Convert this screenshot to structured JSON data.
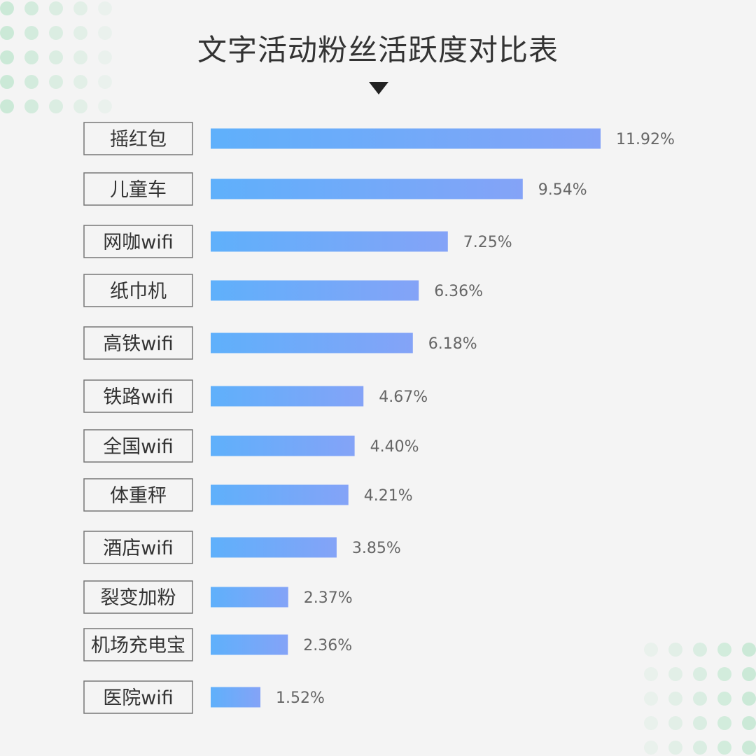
{
  "title": "文字活动粉丝活跃度对比表",
  "colors": {
    "bar_start": "#5fb0fb",
    "bar_end": "#84a3f7",
    "dot_color": "#c7e8d4",
    "background": "#f4f4f4"
  },
  "chart_data": {
    "type": "bar",
    "orientation": "horizontal",
    "title": "文字活动粉丝活跃度对比表",
    "categories": [
      "摇红包",
      "儿童车",
      "网咖wifi",
      "纸巾机",
      "高铁wifi",
      "铁路wifi",
      "全国wifi",
      "体重秤",
      "酒店wifi",
      "裂变加粉",
      "机场充电宝",
      "医院wifi"
    ],
    "values": [
      11.92,
      9.54,
      7.25,
      6.36,
      6.18,
      4.67,
      4.4,
      4.21,
      3.85,
      2.37,
      2.36,
      1.52
    ],
    "value_labels": [
      "11.92%",
      "9.54%",
      "7.25%",
      "6.36%",
      "6.18%",
      "4.67%",
      "4.40%",
      "4.21%",
      "3.85%",
      "2.37%",
      "2.36%",
      "1.52%"
    ],
    "unit": "%",
    "xlim": [
      0,
      11.92
    ],
    "grid": false,
    "legend": "none"
  }
}
